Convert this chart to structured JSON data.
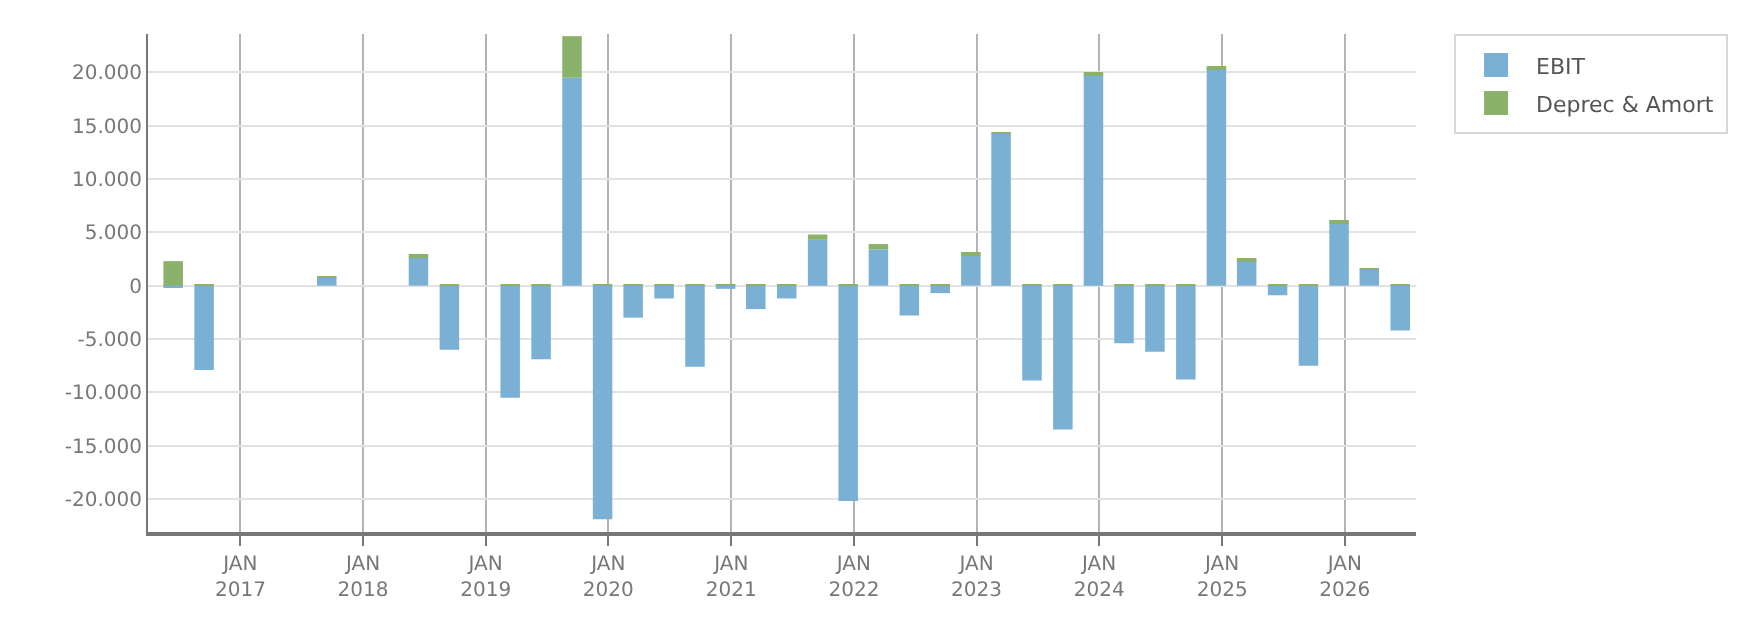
{
  "chart_data": {
    "type": "bar",
    "stacked": true,
    "grid": true,
    "legend": "top right",
    "x": [
      "2016-06-15",
      "2016-09-15",
      "2016-12-15",
      "2017-03-15",
      "2017-06-15",
      "2017-09-15",
      "2017-12-15",
      "2018-03-15",
      "2018-06-15",
      "2018-09-15",
      "2018-12-15",
      "2019-03-15",
      "2019-06-15",
      "2019-09-15",
      "2019-12-15",
      "2020-03-15",
      "2020-06-15",
      "2020-09-15",
      "2020-12-15",
      "2021-03-15",
      "2021-06-15",
      "2021-09-15",
      "2021-12-15",
      "2022-03-15",
      "2022-06-15",
      "2022-09-15",
      "2022-12-15",
      "2023-03-15",
      "2023-06-15",
      "2023-09-15",
      "2023-12-15",
      "2024-03-15",
      "2024-06-15",
      "2024-09-15",
      "2024-12-15",
      "2025-03-15",
      "2025-06-15",
      "2025-09-15",
      "2025-12-15",
      "2026-03-15",
      "2026-06-15"
    ],
    "series": [
      {
        "name": "EBIT",
        "color": "#7ab0d4",
        "values": [
          -200,
          -7900,
          null,
          null,
          null,
          750,
          null,
          null,
          2700,
          -6000,
          null,
          -10500,
          -6900,
          19500,
          -21900,
          -3000,
          -1200,
          -7600,
          -300,
          -2200,
          -1200,
          4300,
          -20200,
          3400,
          -2800,
          -700,
          2900,
          14300,
          -8900,
          -13500,
          19800,
          -5400,
          -6200,
          -8800,
          20400,
          2400,
          -900,
          -7500,
          5900,
          1500,
          -4200
        ]
      },
      {
        "name": "Deprec & Amort",
        "color": "#8ab26a",
        "values": [
          2300,
          100,
          null,
          null,
          null,
          150,
          null,
          null,
          200,
          100,
          null,
          100,
          100,
          3900,
          100,
          100,
          100,
          100,
          100,
          100,
          100,
          500,
          100,
          500,
          100,
          100,
          100,
          100,
          100,
          100,
          100,
          100,
          100,
          100,
          100,
          100,
          100,
          100,
          150,
          100,
          100
        ]
      }
    ],
    "xlim": [
      "2016-04-01",
      "2026-08-01"
    ],
    "xticks": [
      {
        "value": "2017-01-01",
        "label": "JAN\n2017"
      },
      {
        "value": "2018-01-01",
        "label": "JAN\n2018"
      },
      {
        "value": "2019-01-01",
        "label": "JAN\n2019"
      },
      {
        "value": "2020-01-01",
        "label": "JAN\n2020"
      },
      {
        "value": "2021-01-01",
        "label": "JAN\n2021"
      },
      {
        "value": "2022-01-01",
        "label": "JAN\n2022"
      },
      {
        "value": "2023-01-01",
        "label": "JAN\n2023"
      },
      {
        "value": "2024-01-01",
        "label": "JAN\n2024"
      },
      {
        "value": "2025-01-01",
        "label": "JAN\n2025"
      },
      {
        "value": "2026-01-01",
        "label": "JAN\n2026"
      }
    ],
    "ylim": [
      -23100,
      23600
    ],
    "yticks": [
      {
        "value": -20000,
        "label": "-20.000"
      },
      {
        "value": -15000,
        "label": "-15.000"
      },
      {
        "value": -10000,
        "label": "-10.000"
      },
      {
        "value": -5000,
        "label": "-5.000"
      },
      0,
      {
        "value": 5000,
        "label": "5.000"
      },
      {
        "value": 10000,
        "label": "10.000"
      },
      {
        "value": 15000,
        "label": "15.000"
      },
      {
        "value": 20000,
        "label": "20.000"
      }
    ]
  }
}
